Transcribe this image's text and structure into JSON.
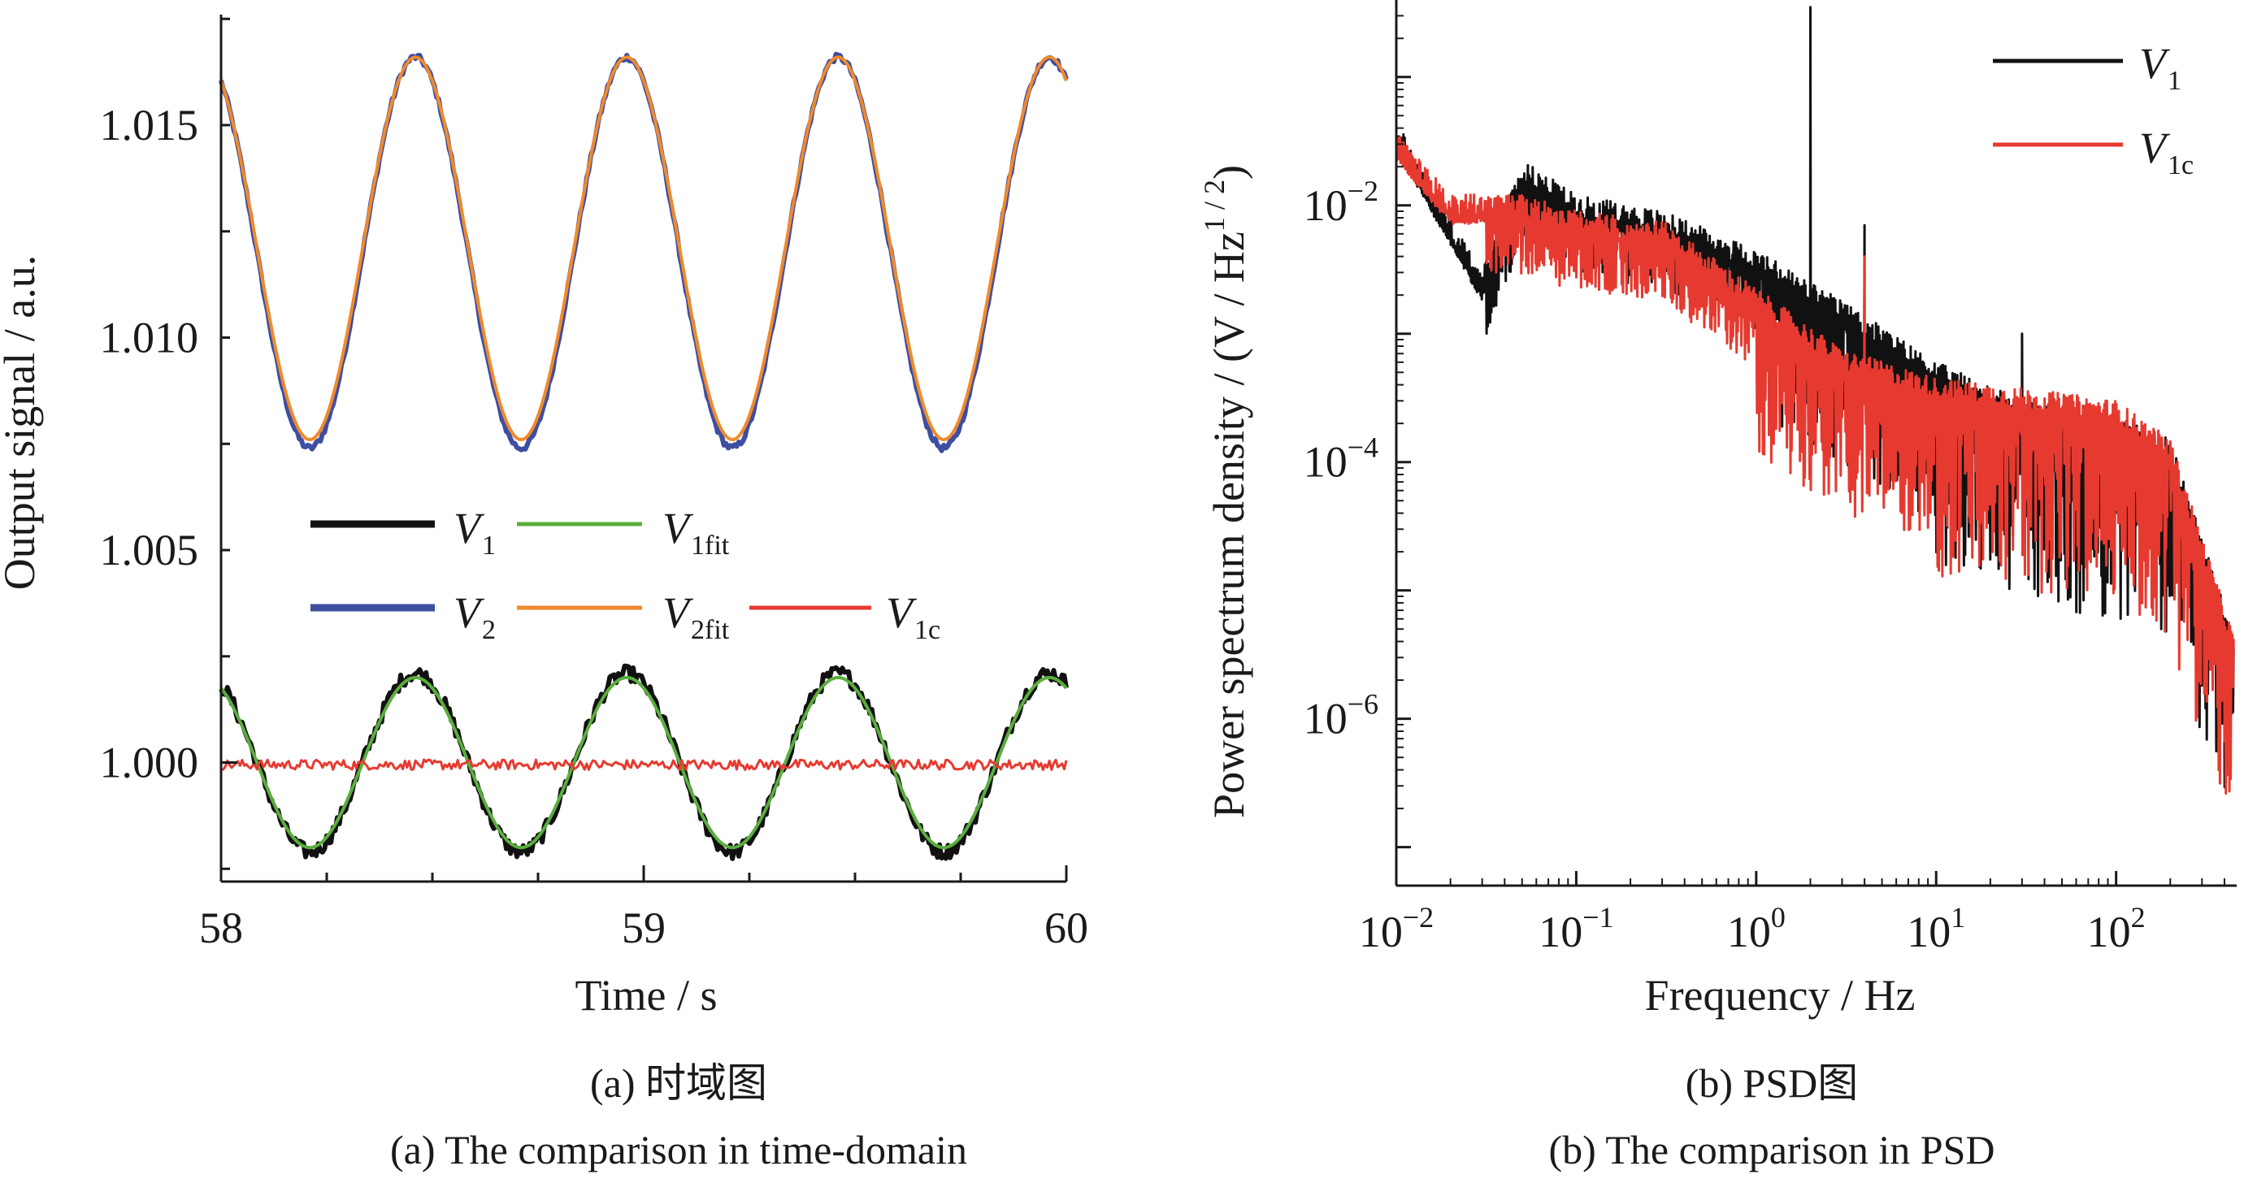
{
  "chart_data": [
    {
      "type": "line",
      "xlabel": "Time / s",
      "ylabel": "Output signal / a.u.",
      "xlim": [
        58,
        60
      ],
      "ylim": [
        0.9972,
        1.0176
      ],
      "xticks": [
        "58",
        "59",
        "60"
      ],
      "xtick_values": [
        58,
        59,
        60
      ],
      "yticks": [
        "1.000",
        "1.005",
        "1.010",
        "1.015"
      ],
      "ytick_values": [
        1.0,
        1.005,
        1.01,
        1.015
      ],
      "caption_cn": "(a) 时域图",
      "caption_en": "(a) The comparison in time-domain",
      "model": {
        "frequency_hz": 2,
        "x_range": [
          58,
          60
        ],
        "samples": 400
      },
      "series": [
        {
          "key": "V1",
          "name": "V",
          "sub": "1",
          "color": "#111111",
          "offset": 1.0,
          "amplitude": 0.0021,
          "phase_peak_x": 58.46,
          "noise": 0.00018,
          "width": 6
        },
        {
          "key": "V1fit",
          "name": "V",
          "sub": "1fit",
          "color": "#5aae3c",
          "offset": 1.0,
          "amplitude": 0.002,
          "phase_peak_x": 58.46,
          "noise": 0,
          "width": 4
        },
        {
          "key": "V2",
          "name": "V",
          "sub": "2",
          "color": "#3e4ea0",
          "offset": 1.012,
          "amplitude": 0.0046,
          "phase_peak_x": 58.46,
          "noise": 8e-05,
          "width": 6
        },
        {
          "key": "V2fit",
          "name": "V",
          "sub": "2fit",
          "color": "#f08a2c",
          "offset": 1.0121,
          "amplitude": 0.0045,
          "phase_peak_x": 58.46,
          "noise": 0,
          "width": 4
        },
        {
          "key": "V1c",
          "name": "V",
          "sub": "1c",
          "color": "#e63a30",
          "offset": 0.99995,
          "amplitude": 0,
          "phase_peak_x": 58.46,
          "noise": 0.00012,
          "width": 3
        }
      ],
      "legend": {
        "position": "center-left"
      }
    },
    {
      "type": "line",
      "log_x": true,
      "log_y": true,
      "xlabel": "Frequency / Hz",
      "ylabel": "Power spectrum density / (V / Hz",
      "ylabel_sup": "1 / 2",
      "ylabel_end": ")",
      "xlim_exp": [
        -2,
        2.67
      ],
      "ylim_exp": [
        -7.3,
        -0.4
      ],
      "xticks": [
        {
          "base": "10",
          "exp": "−2",
          "value_exp": -2
        },
        {
          "base": "10",
          "exp": "−1",
          "value_exp": -1
        },
        {
          "base": "10",
          "exp": "0",
          "value_exp": 0
        },
        {
          "base": "10",
          "exp": "1",
          "value_exp": 1
        },
        {
          "base": "10",
          "exp": "2",
          "value_exp": 2
        }
      ],
      "yticks": [
        {
          "base": "10",
          "exp": "−2",
          "value_exp": -2
        },
        {
          "base": "10",
          "exp": "−4",
          "value_exp": -4
        },
        {
          "base": "10",
          "exp": "−6",
          "value_exp": -6
        }
      ],
      "caption_cn": "(b) PSD图",
      "caption_en": "(b) The comparison in PSD",
      "series": [
        {
          "key": "V1",
          "name": "V",
          "sub": "1",
          "color": "#111111",
          "anchors": [
            [
              0.01,
              0.03
            ],
            [
              0.03,
              0.002
            ],
            [
              0.05,
              0.015
            ],
            [
              0.1,
              0.008
            ],
            [
              0.3,
              0.006
            ],
            [
              1,
              0.003
            ],
            [
              3,
              0.0012
            ],
            [
              10,
              0.0004
            ],
            [
              30,
              0.0002
            ],
            [
              100,
              0.00015
            ],
            [
              200,
              0.0001
            ],
            [
              450,
              3e-06
            ]
          ],
          "spikes": [
            [
              2,
              0.35
            ],
            [
              4,
              0.007
            ],
            [
              30,
              0.001
            ]
          ]
        },
        {
          "key": "V1c",
          "name": "V",
          "sub": "1c",
          "color": "#e63a30",
          "anchors": [
            [
              0.01,
              0.025
            ],
            [
              0.02,
              0.008
            ],
            [
              0.05,
              0.008
            ],
            [
              0.1,
              0.006
            ],
            [
              0.3,
              0.005
            ],
            [
              1,
              0.0015
            ],
            [
              3,
              0.0005
            ],
            [
              10,
              0.0003
            ],
            [
              30,
              0.00025
            ],
            [
              100,
              0.0002
            ],
            [
              200,
              0.0001
            ],
            [
              450,
              3e-06
            ]
          ],
          "spikes": [
            [
              4,
              0.004
            ]
          ]
        }
      ],
      "legend": {
        "position": "top-right"
      }
    }
  ]
}
